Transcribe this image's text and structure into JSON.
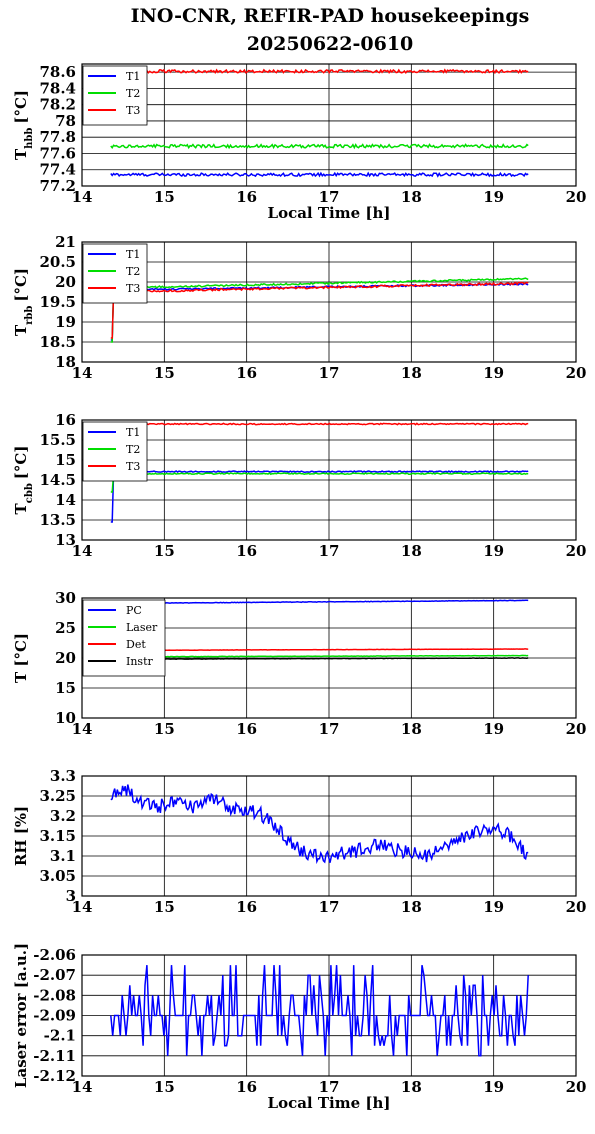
{
  "title_line1": "INO-CNR, REFIR-PAD housekeepings",
  "title_line2": "20250622-0610",
  "colors": {
    "blue": "#0000ff",
    "green": "#00dd00",
    "red": "#ff0000",
    "black": "#000000"
  },
  "chart_data": [
    {
      "type": "line",
      "id": "thbb",
      "ylabel": "T",
      "ylabel_sub": "hbb",
      "ylabel_unit": "[°C]",
      "xlabel": "Local Time [h]",
      "xlim": [
        14,
        20
      ],
      "ylim": [
        77.2,
        78.7
      ],
      "yticks": [
        "77.2",
        "77.4",
        "77.6",
        "77.8",
        "78",
        "78.2",
        "78.4",
        "78.6"
      ],
      "xticks": [
        "14",
        "15",
        "16",
        "17",
        "18",
        "19",
        "20"
      ],
      "grid": true,
      "legend": "top-left",
      "series": [
        {
          "name": "T1",
          "color": "#0000ff",
          "start": 14.35,
          "end": 19.42,
          "base": 77.34,
          "noise": 0.018
        },
        {
          "name": "T2",
          "color": "#00dd00",
          "start": 14.35,
          "end": 19.42,
          "base": 77.69,
          "noise": 0.02
        },
        {
          "name": "T3",
          "color": "#ff0000",
          "start": 14.35,
          "end": 19.42,
          "base": 78.61,
          "noise": 0.018
        }
      ]
    },
    {
      "type": "line",
      "id": "trbb",
      "ylabel": "T",
      "ylabel_sub": "rbb",
      "ylabel_unit": "[°C]",
      "xlabel": "",
      "xlim": [
        14,
        20
      ],
      "ylim": [
        18,
        21
      ],
      "yticks": [
        "18",
        "18.5",
        "19",
        "19.5",
        "20",
        "20.5",
        "21"
      ],
      "xticks": [
        "14",
        "15",
        "16",
        "17",
        "18",
        "19",
        "20"
      ],
      "grid": true,
      "legend": "top-left",
      "series": [
        {
          "name": "T1",
          "color": "#0000ff",
          "start": 14.35,
          "end": 19.42,
          "base": 19.8,
          "endval": 19.95,
          "noise": 0.02,
          "dip": 18.55
        },
        {
          "name": "T2",
          "color": "#00dd00",
          "start": 14.35,
          "end": 19.42,
          "base": 19.85,
          "endval": 20.08,
          "noise": 0.02,
          "dip": 18.5
        },
        {
          "name": "T3",
          "color": "#ff0000",
          "start": 14.35,
          "end": 19.42,
          "base": 19.75,
          "endval": 19.97,
          "noise": 0.025,
          "dip": 18.6
        }
      ]
    },
    {
      "type": "line",
      "id": "tcbb",
      "ylabel": "T",
      "ylabel_sub": "cbb",
      "ylabel_unit": "[°C]",
      "xlabel": "",
      "xlim": [
        14,
        20
      ],
      "ylim": [
        13,
        16
      ],
      "yticks": [
        "13",
        "13.5",
        "14",
        "14.5",
        "15",
        "15.5",
        "16"
      ],
      "xticks": [
        "14",
        "15",
        "16",
        "17",
        "18",
        "19",
        "20"
      ],
      "grid": true,
      "legend": "top-left",
      "series": [
        {
          "name": "T1",
          "color": "#0000ff",
          "start": 14.35,
          "end": 19.42,
          "base": 14.71,
          "noise": 0.015,
          "dip": 13.45
        },
        {
          "name": "T2",
          "color": "#00dd00",
          "start": 14.35,
          "end": 19.42,
          "base": 14.66,
          "noise": 0.015,
          "dip": 14.2
        },
        {
          "name": "T3",
          "color": "#ff0000",
          "start": 14.35,
          "end": 19.42,
          "base": 15.9,
          "noise": 0.015
        }
      ]
    },
    {
      "type": "line",
      "id": "temps",
      "ylabel": "T [°C]",
      "ylabel_sub": "",
      "ylabel_unit": "",
      "xlabel": "",
      "xlim": [
        14,
        20
      ],
      "ylim": [
        10,
        30
      ],
      "yticks": [
        "10",
        "15",
        "20",
        "25",
        "30"
      ],
      "xticks": [
        "14",
        "15",
        "16",
        "17",
        "18",
        "19",
        "20"
      ],
      "grid": true,
      "legend": "top-left",
      "series": [
        {
          "name": "PC",
          "color": "#0000ff",
          "start": 14.35,
          "end": 19.42,
          "base": 29.1,
          "endval": 29.6,
          "noise": 0.04
        },
        {
          "name": "Laser",
          "color": "#00dd00",
          "start": 14.35,
          "end": 19.42,
          "base": 20.2,
          "endval": 20.4,
          "noise": 0.03
        },
        {
          "name": "Det",
          "color": "#ff0000",
          "start": 15.0,
          "end": 19.42,
          "base": 21.3,
          "endval": 21.5,
          "noise": 0.02
        },
        {
          "name": "Instr",
          "color": "#000000",
          "start": 14.35,
          "end": 19.42,
          "base": 19.8,
          "endval": 20.0,
          "noise": 0.03
        }
      ]
    },
    {
      "type": "line",
      "id": "rh",
      "ylabel": "RH [%]",
      "ylabel_sub": "",
      "ylabel_unit": "",
      "xlabel": "",
      "xlim": [
        14,
        20
      ],
      "ylim": [
        3,
        3.3
      ],
      "yticks": [
        "3",
        "3.05",
        "3.1",
        "3.15",
        "3.2",
        "3.25",
        "3.3"
      ],
      "xticks": [
        "14",
        "15",
        "16",
        "17",
        "18",
        "19",
        "20"
      ],
      "grid": true,
      "legend": "none",
      "series": [
        {
          "name": "",
          "color": "#0000ff",
          "keyframes": [
            [
              14.35,
              3.25
            ],
            [
              14.5,
              3.27
            ],
            [
              14.7,
              3.24
            ],
            [
              14.9,
              3.22
            ],
            [
              15.1,
              3.24
            ],
            [
              15.3,
              3.22
            ],
            [
              15.6,
              3.24
            ],
            [
              15.8,
              3.22
            ],
            [
              16.0,
              3.22
            ],
            [
              16.2,
              3.2
            ],
            [
              16.4,
              3.16
            ],
            [
              16.6,
              3.12
            ],
            [
              16.8,
              3.1
            ],
            [
              17.0,
              3.1
            ],
            [
              17.3,
              3.11
            ],
            [
              17.6,
              3.13
            ],
            [
              17.9,
              3.11
            ],
            [
              18.2,
              3.1
            ],
            [
              18.5,
              3.13
            ],
            [
              18.8,
              3.16
            ],
            [
              19.0,
              3.17
            ],
            [
              19.2,
              3.15
            ],
            [
              19.42,
              3.1
            ]
          ],
          "noise": 0.018
        }
      ]
    },
    {
      "type": "line",
      "id": "laser",
      "ylabel": "Laser error [a.u.]",
      "ylabel_sub": "",
      "ylabel_unit": "",
      "xlabel": "Local Time [h]",
      "xlim": [
        14,
        20
      ],
      "ylim": [
        -2.12,
        -2.06
      ],
      "yticks": [
        "-2.12",
        "-2.11",
        "-2.1",
        "-2.09",
        "-2.08",
        "-2.07",
        "-2.06"
      ],
      "xticks": [
        "14",
        "15",
        "16",
        "17",
        "18",
        "19",
        "20"
      ],
      "grid": true,
      "legend": "none",
      "series": [
        {
          "name": "",
          "color": "#0000ff",
          "start": 14.35,
          "end": 19.42,
          "levels": [
            -2.1,
            -2.095,
            -2.09,
            -2.085,
            -2.08,
            -2.075,
            -2.07,
            -2.065,
            -2.11
          ],
          "base": -2.09
        }
      ]
    }
  ]
}
